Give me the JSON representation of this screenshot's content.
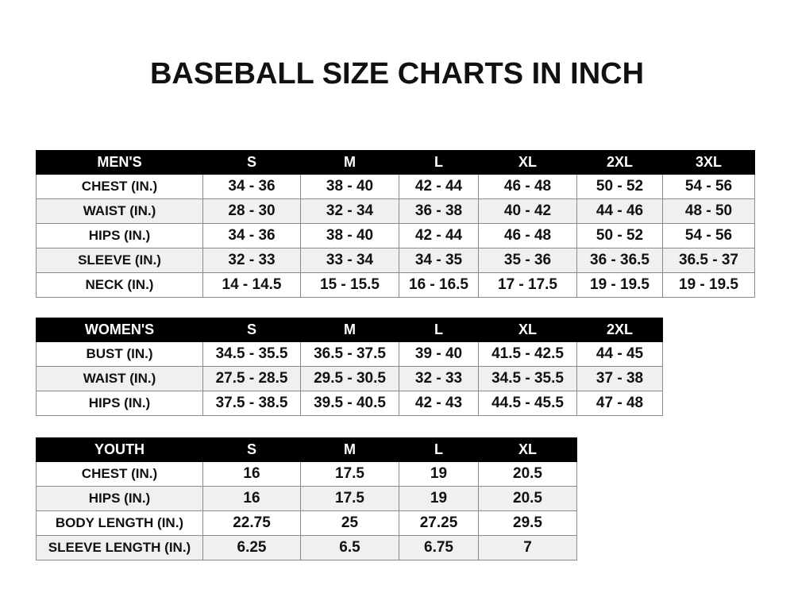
{
  "title": "BASEBALL SIZE CHARTS IN INCH",
  "tables": [
    {
      "headers": [
        "MEN'S",
        "S",
        "M",
        "L",
        "XL",
        "2XL",
        "3XL"
      ],
      "rows": [
        [
          "CHEST (IN.)",
          "34 - 36",
          "38 - 40",
          "42 - 44",
          "46 - 48",
          "50 - 52",
          "54 - 56"
        ],
        [
          "WAIST (IN.)",
          "28 - 30",
          "32 - 34",
          "36 - 38",
          "40 - 42",
          "44 - 46",
          "48 - 50"
        ],
        [
          "HIPS (IN.)",
          "34 - 36",
          "38 - 40",
          "42 - 44",
          "46 - 48",
          "50 - 52",
          "54 - 56"
        ],
        [
          "SLEEVE (IN.)",
          "32 - 33",
          "33 - 34",
          "34 - 35",
          "35 - 36",
          "36 - 36.5",
          "36.5 - 37"
        ],
        [
          "NECK (IN.)",
          "14 - 14.5",
          "15 - 15.5",
          "16 - 16.5",
          "17 - 17.5",
          "19 - 19.5",
          "19 - 19.5"
        ]
      ]
    },
    {
      "headers": [
        "WOMEN'S",
        "S",
        "M",
        "L",
        "XL",
        "2XL"
      ],
      "rows": [
        [
          "BUST (IN.)",
          "34.5 - 35.5",
          "36.5 - 37.5",
          "39 - 40",
          "41.5 - 42.5",
          "44 - 45"
        ],
        [
          "WAIST (IN.)",
          "27.5 - 28.5",
          "29.5 - 30.5",
          "32 - 33",
          "34.5 - 35.5",
          "37 - 38"
        ],
        [
          "HIPS (IN.)",
          "37.5 - 38.5",
          "39.5 - 40.5",
          "42 - 43",
          "44.5 - 45.5",
          "47 - 48"
        ]
      ]
    },
    {
      "headers": [
        "YOUTH",
        "S",
        "M",
        "L",
        "XL"
      ],
      "rows": [
        [
          "CHEST (IN.)",
          "16",
          "17.5",
          "19",
          "20.5"
        ],
        [
          "HIPS (IN.)",
          "16",
          "17.5",
          "19",
          "20.5"
        ],
        [
          "BODY LENGTH (IN.)",
          "22.75",
          "25",
          "27.25",
          "29.5"
        ],
        [
          "SLEEVE LENGTH (IN.)",
          "6.25",
          "6.5",
          "6.75",
          "7"
        ]
      ]
    }
  ]
}
